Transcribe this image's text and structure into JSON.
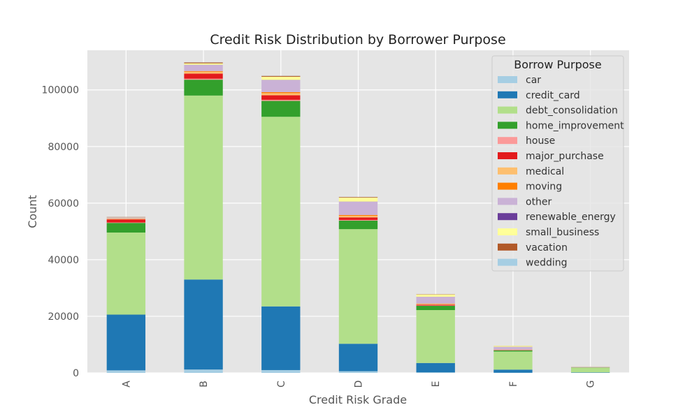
{
  "chart_data": {
    "type": "bar",
    "stacked": true,
    "title": "Credit Risk Distribution by Borrower Purpose",
    "xlabel": "Credit Risk Grade",
    "ylabel": "Count",
    "ylim": [
      0,
      114000
    ],
    "yticks": [
      0,
      20000,
      40000,
      60000,
      80000,
      100000
    ],
    "ytick_labels": [
      "0",
      "20000",
      "40000",
      "60000",
      "80000",
      "100000"
    ],
    "grid": true,
    "legend_title": "Borrow Purpose",
    "legend_position": "top-right",
    "categories": [
      "A",
      "B",
      "C",
      "D",
      "E",
      "F",
      "G"
    ],
    "series": [
      {
        "name": "car",
        "color": "#a6cee3",
        "values": [
          900,
          1200,
          1000,
          600,
          200,
          60,
          20
        ]
      },
      {
        "name": "credit_card",
        "color": "#1f78b4",
        "values": [
          19700,
          31800,
          22500,
          9700,
          3300,
          1100,
          150
        ]
      },
      {
        "name": "debt_consolidation",
        "color": "#b2df8a",
        "values": [
          29000,
          65000,
          67000,
          40500,
          18700,
          6400,
          1700
        ]
      },
      {
        "name": "home_improvement",
        "color": "#33a02c",
        "values": [
          3400,
          5600,
          5600,
          3000,
          1500,
          400,
          60
        ]
      },
      {
        "name": "house",
        "color": "#fb9a99",
        "values": [
          150,
          350,
          400,
          250,
          120,
          40,
          10
        ]
      },
      {
        "name": "major_purchase",
        "color": "#e31a1c",
        "values": [
          1100,
          1800,
          1600,
          900,
          300,
          100,
          20
        ]
      },
      {
        "name": "medical",
        "color": "#fdbf6f",
        "values": [
          250,
          650,
          750,
          550,
          250,
          80,
          10
        ]
      },
      {
        "name": "moving",
        "color": "#ff7f00",
        "values": [
          80,
          250,
          350,
          300,
          130,
          50,
          10
        ]
      },
      {
        "name": "other",
        "color": "#cab2d6",
        "values": [
          300,
          2200,
          4300,
          4700,
          2400,
          1000,
          200
        ]
      },
      {
        "name": "renewable_energy",
        "color": "#6a3d9a",
        "values": [
          10,
          40,
          50,
          40,
          20,
          10,
          5
        ]
      },
      {
        "name": "small_business",
        "color": "#ffff99",
        "values": [
          100,
          500,
          1100,
          1400,
          800,
          350,
          80
        ]
      },
      {
        "name": "vacation",
        "color": "#b15928",
        "values": [
          100,
          300,
          300,
          200,
          90,
          30,
          10
        ]
      },
      {
        "name": "wedding",
        "color": "#a6cee3",
        "values": [
          20,
          50,
          50,
          30,
          10,
          5,
          2
        ]
      }
    ]
  }
}
